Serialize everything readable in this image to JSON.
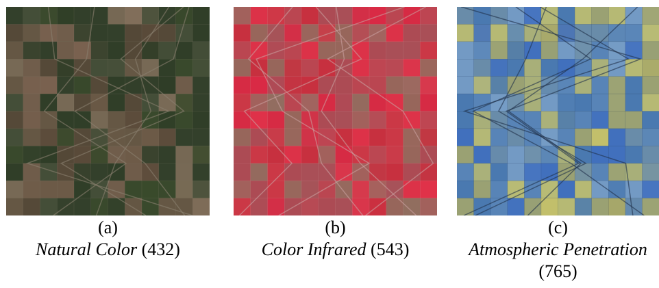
{
  "figure": {
    "panels": [
      {
        "label": "(a)",
        "name": "Natural Color",
        "bands": "(432)"
      },
      {
        "label": "(b)",
        "name": "Color Infrared",
        "bands": "(543)"
      },
      {
        "label": "(c)",
        "name": "Atmospheric Penetration",
        "bands": "(765)"
      }
    ]
  }
}
